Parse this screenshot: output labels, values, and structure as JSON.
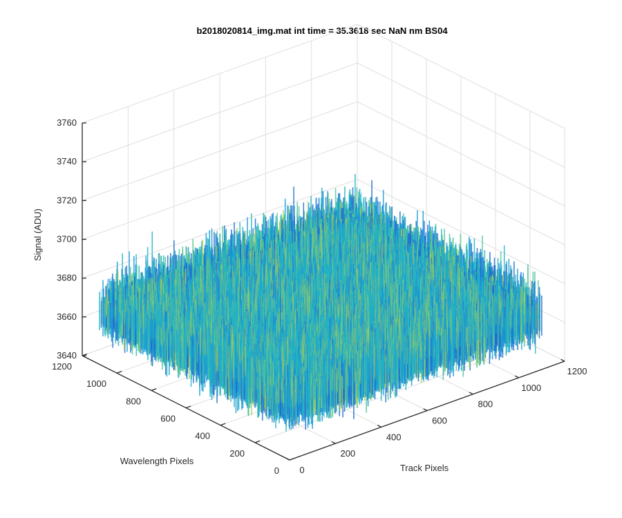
{
  "chart_data": {
    "type": "surface",
    "title": "b2018020814_img.mat int time = 35.3618 sec  NaN nm BS04",
    "xlabel": "Track Pixels",
    "ylabel": "Wavelength Pixels",
    "zlabel": "Signal (ADU)",
    "xlim": [
      0,
      1200
    ],
    "ylim": [
      0,
      1200
    ],
    "zlim": [
      3640,
      3760
    ],
    "xticks": [
      0,
      200,
      400,
      600,
      800,
      1000,
      1200
    ],
    "yticks": [
      0,
      200,
      400,
      600,
      800,
      1000,
      1200
    ],
    "zticks": [
      3640,
      3660,
      3680,
      3700,
      3720,
      3740,
      3760
    ],
    "x_extent": [
      0,
      1100
    ],
    "y_extent": [
      0,
      1100
    ],
    "signal_mean": 3667,
    "signal_noise_range": [
      3645,
      3725
    ],
    "grid": true,
    "colormap": [
      "#1f6fd1",
      "#1a9bd7",
      "#22b5c2",
      "#52c39a",
      "#a6cf5a"
    ]
  }
}
